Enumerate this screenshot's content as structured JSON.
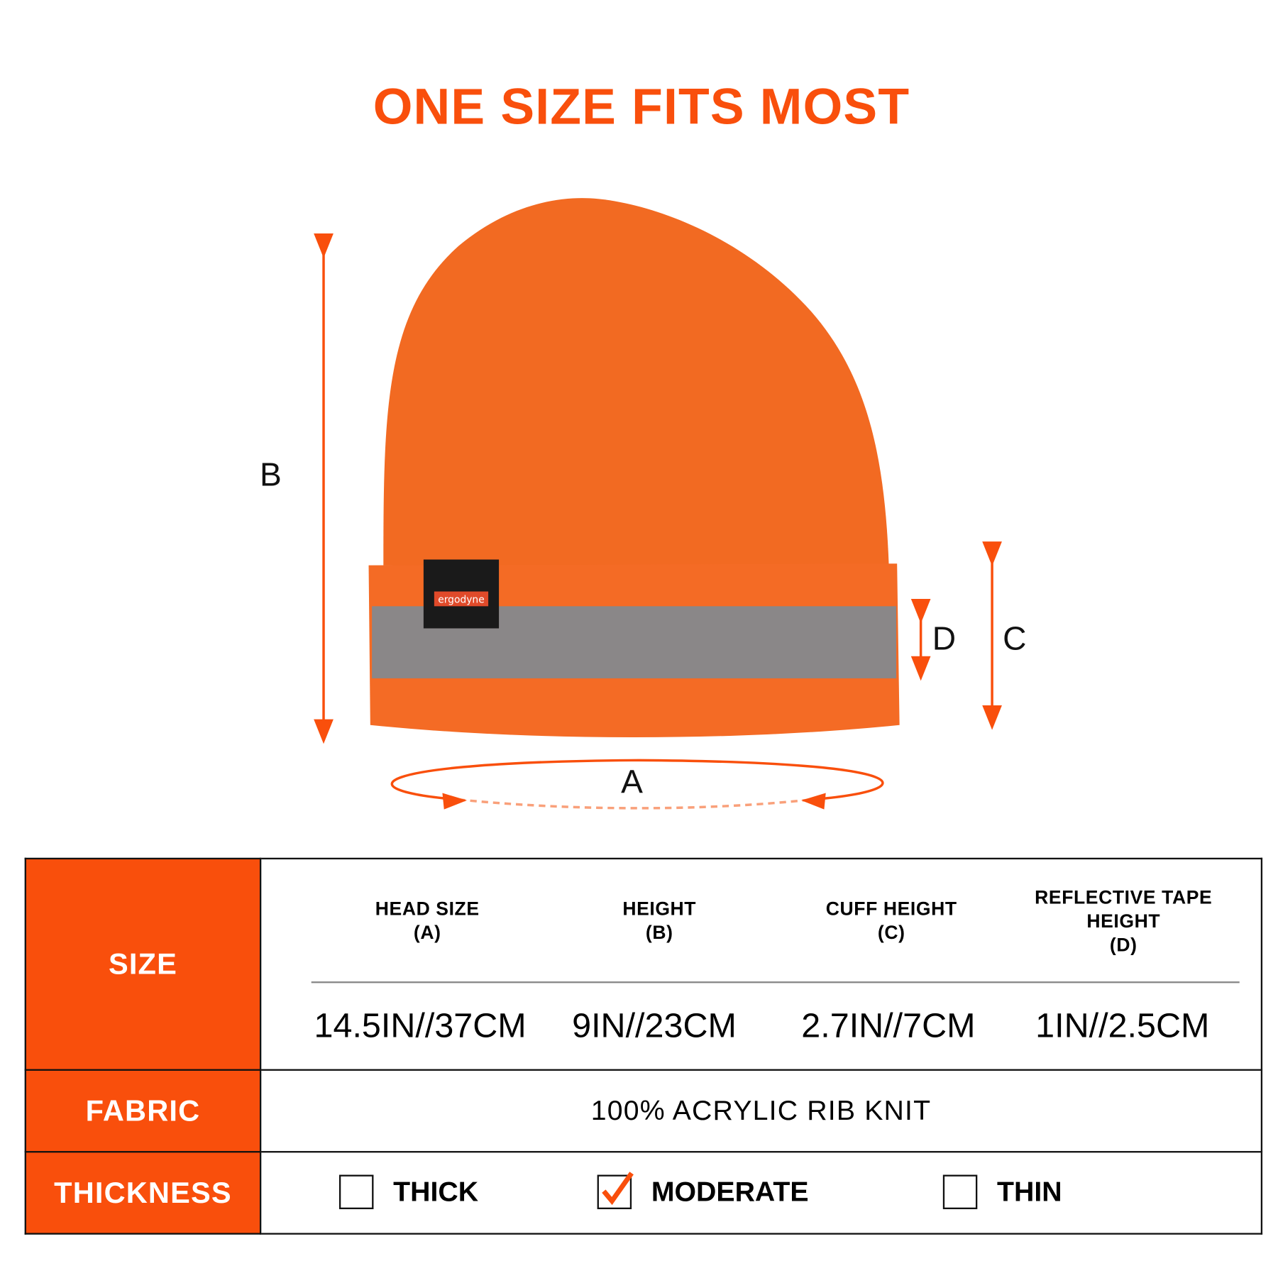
{
  "title": "ONE SIZE FITS MOST",
  "diagram": {
    "labels": {
      "a": "A",
      "b": "B",
      "c": "C",
      "d": "D"
    },
    "brand_label": "ergodyne",
    "colors": {
      "accent": "#f94f0c",
      "hat": "#f26a22",
      "tape": "#8a8788"
    }
  },
  "table": {
    "size_label": "SIZE",
    "columns": [
      {
        "header": "HEAD SIZE\n(A)",
        "value": "14.5IN//37CM"
      },
      {
        "header": "HEIGHT\n(B)",
        "value": "9IN//23CM"
      },
      {
        "header": "CUFF HEIGHT\n(C)",
        "value": "2.7IN//7CM"
      },
      {
        "header": "REFLECTIVE TAPE\nHEIGHT\n(D)",
        "value": "1IN//2.5CM"
      }
    ],
    "fabric_label": "FABRIC",
    "fabric_value": "100% ACRYLIC RIB KNIT",
    "thickness_label": "THICKNESS",
    "thickness_options": [
      {
        "label": "THICK",
        "checked": false
      },
      {
        "label": "MODERATE",
        "checked": true
      },
      {
        "label": "THIN",
        "checked": false
      }
    ]
  }
}
